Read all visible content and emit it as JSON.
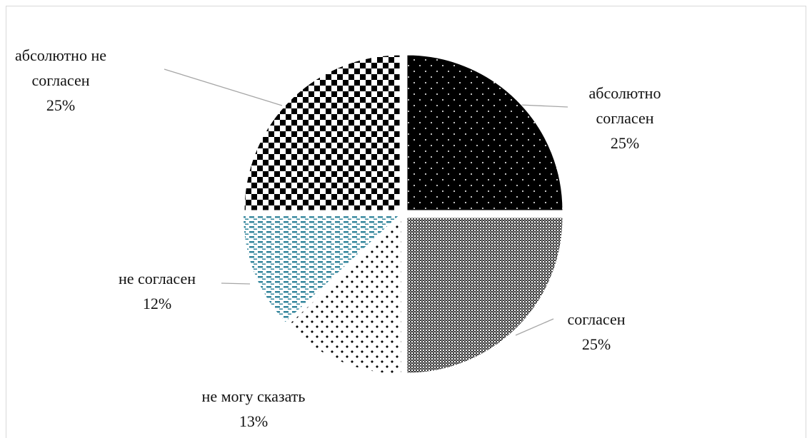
{
  "chart_data": {
    "type": "pie",
    "categories": [
      "абсолютно согласен",
      "согласен",
      "не могу сказать",
      "не согласен",
      "абсолютно не согласен"
    ],
    "values": [
      25,
      25,
      13,
      12,
      25
    ],
    "value_labels": [
      "25%",
      "25%",
      "13%",
      "12%",
      "25%"
    ],
    "colors": [
      "#000000",
      "#3a3a3a",
      "#000000",
      "#31849b",
      "#000000"
    ]
  }
}
